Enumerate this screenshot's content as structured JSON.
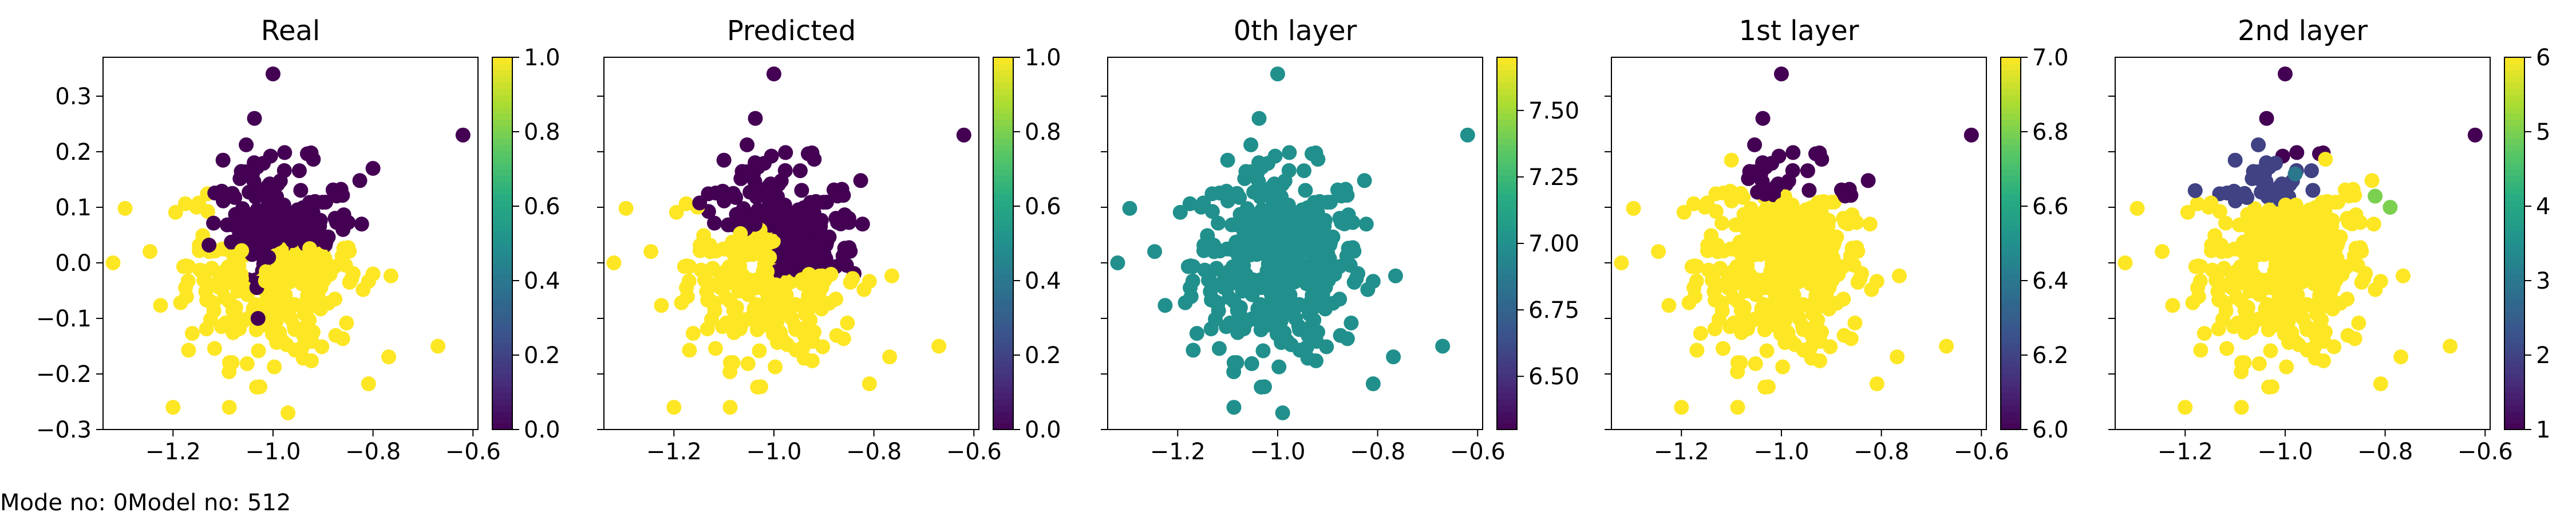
{
  "footer": {
    "text": "Mode no: 0Model no: 512"
  },
  "colormap_name": "viridis",
  "chart_data": [
    {
      "type": "scatter",
      "title": "Real",
      "xlim": [
        -1.34,
        -0.59
      ],
      "ylim": [
        -0.3,
        0.37
      ],
      "xticks": [
        -1.2,
        -1.0,
        -0.8,
        -0.6
      ],
      "yticks": [
        -0.3,
        -0.2,
        -0.1,
        0.0,
        0.1,
        0.2,
        0.3
      ],
      "show_ytick_labels": true,
      "colorbar": {
        "min": 0.0,
        "max": 1.0,
        "ticks": [
          0.0,
          0.2,
          0.4,
          0.6,
          0.8,
          1.0
        ],
        "decimals": 1
      },
      "color_rule": "diagonal",
      "points": [
        {
          "x": -1.0,
          "y": 0.34,
          "c": 0
        },
        {
          "x": -0.62,
          "y": 0.23,
          "c": 0
        },
        {
          "x": -0.67,
          "y": -0.15,
          "c": 1
        },
        {
          "x": -1.2,
          "y": -0.26,
          "c": 1
        },
        {
          "x": -0.97,
          "y": -0.27,
          "c": 1
        },
        {
          "x": -1.32,
          "y": 0.0,
          "c": 1
        },
        {
          "x": -1.03,
          "y": -0.1,
          "c": 0
        },
        {
          "x": -0.86,
          "y": 0.06,
          "c": 0
        },
        {
          "x": -0.8,
          "y": 0.17,
          "c": 0
        },
        {
          "x": -0.8,
          "y": -0.02,
          "c": 1
        }
      ]
    },
    {
      "type": "scatter",
      "title": "Predicted",
      "xlim": [
        -1.34,
        -0.59
      ],
      "ylim": [
        -0.3,
        0.37
      ],
      "xticks": [
        -1.2,
        -1.0,
        -0.8,
        -0.6
      ],
      "yticks": [
        -0.3,
        -0.2,
        -0.1,
        0.0,
        0.1,
        0.2,
        0.3
      ],
      "show_ytick_labels": false,
      "colorbar": {
        "min": 0.0,
        "max": 1.0,
        "ticks": [
          0.0,
          0.2,
          0.4,
          0.6,
          0.8,
          1.0
        ],
        "decimals": 1
      },
      "color_rule": "wedge",
      "points": [
        {
          "x": -1.0,
          "y": 0.34,
          "c": 0
        },
        {
          "x": -0.62,
          "y": 0.23,
          "c": 0
        },
        {
          "x": -0.67,
          "y": -0.15,
          "c": 1
        },
        {
          "x": -1.2,
          "y": -0.26,
          "c": 1
        },
        {
          "x": -1.32,
          "y": 0.0,
          "c": 1
        },
        {
          "x": -0.95,
          "y": 0.0,
          "c": 0
        },
        {
          "x": -0.85,
          "y": 0.08,
          "c": 0
        }
      ]
    },
    {
      "type": "scatter",
      "title": "0th layer",
      "xlim": [
        -1.34,
        -0.59
      ],
      "ylim": [
        -0.3,
        0.37
      ],
      "xticks": [
        -1.2,
        -1.0,
        -0.8,
        -0.6
      ],
      "yticks": [
        -0.3,
        -0.2,
        -0.1,
        0.0,
        0.1,
        0.2,
        0.3
      ],
      "show_ytick_labels": false,
      "colorbar": {
        "min": 6.3,
        "max": 7.7,
        "ticks": [
          6.5,
          6.75,
          7.0,
          7.25,
          7.5
        ],
        "decimals": 2
      },
      "color_rule": "constant",
      "constant_value": 7.0,
      "points": [
        {
          "x": -1.0,
          "y": 0.34,
          "c": 7.0
        },
        {
          "x": -0.62,
          "y": 0.23,
          "c": 7.0
        },
        {
          "x": -0.67,
          "y": -0.15,
          "c": 7.0
        },
        {
          "x": -0.99,
          "y": -0.27,
          "c": 7.0
        },
        {
          "x": -1.32,
          "y": 0.0,
          "c": 7.0
        }
      ]
    },
    {
      "type": "scatter",
      "title": "1st layer",
      "xlim": [
        -1.34,
        -0.59
      ],
      "ylim": [
        -0.3,
        0.37
      ],
      "xticks": [
        -1.2,
        -1.0,
        -0.8,
        -0.6
      ],
      "yticks": [
        -0.3,
        -0.2,
        -0.1,
        0.0,
        0.1,
        0.2,
        0.3
      ],
      "show_ytick_labels": false,
      "colorbar": {
        "min": 6.0,
        "max": 7.0,
        "ticks": [
          6.0,
          6.2,
          6.4,
          6.6,
          6.8,
          7.0
        ],
        "decimals": 1
      },
      "color_rule": "upper_band",
      "points": [
        {
          "x": -1.0,
          "y": 0.34,
          "c": 6.0
        },
        {
          "x": -0.62,
          "y": 0.23,
          "c": 6.0
        },
        {
          "x": -0.67,
          "y": -0.15,
          "c": 7.0
        },
        {
          "x": -1.2,
          "y": -0.26,
          "c": 7.0
        },
        {
          "x": -1.32,
          "y": 0.0,
          "c": 7.0
        }
      ]
    },
    {
      "type": "scatter",
      "title": "2nd layer",
      "xlim": [
        -1.34,
        -0.59
      ],
      "ylim": [
        -0.3,
        0.37
      ],
      "xticks": [
        -1.2,
        -1.0,
        -0.8,
        -0.6
      ],
      "yticks": [
        -0.3,
        -0.2,
        -0.1,
        0.0,
        0.1,
        0.2,
        0.3
      ],
      "show_ytick_labels": false,
      "colorbar": {
        "min": 1.0,
        "max": 6.0,
        "ticks": [
          1,
          2,
          3,
          4,
          5,
          6
        ],
        "decimals": 0
      },
      "color_rule": "layered",
      "points": [
        {
          "x": -1.0,
          "y": 0.34,
          "c": 1
        },
        {
          "x": -0.62,
          "y": 0.23,
          "c": 1
        },
        {
          "x": -0.67,
          "y": -0.15,
          "c": 6
        },
        {
          "x": -1.2,
          "y": -0.26,
          "c": 6
        },
        {
          "x": -1.32,
          "y": 0.0,
          "c": 6
        },
        {
          "x": -1.18,
          "y": 0.13,
          "c": 2
        },
        {
          "x": -1.05,
          "y": 0.15,
          "c": 2
        },
        {
          "x": -0.98,
          "y": 0.16,
          "c": 3
        },
        {
          "x": -0.82,
          "y": 0.12,
          "c": 5
        },
        {
          "x": -0.79,
          "y": 0.1,
          "c": 5
        }
      ]
    }
  ]
}
